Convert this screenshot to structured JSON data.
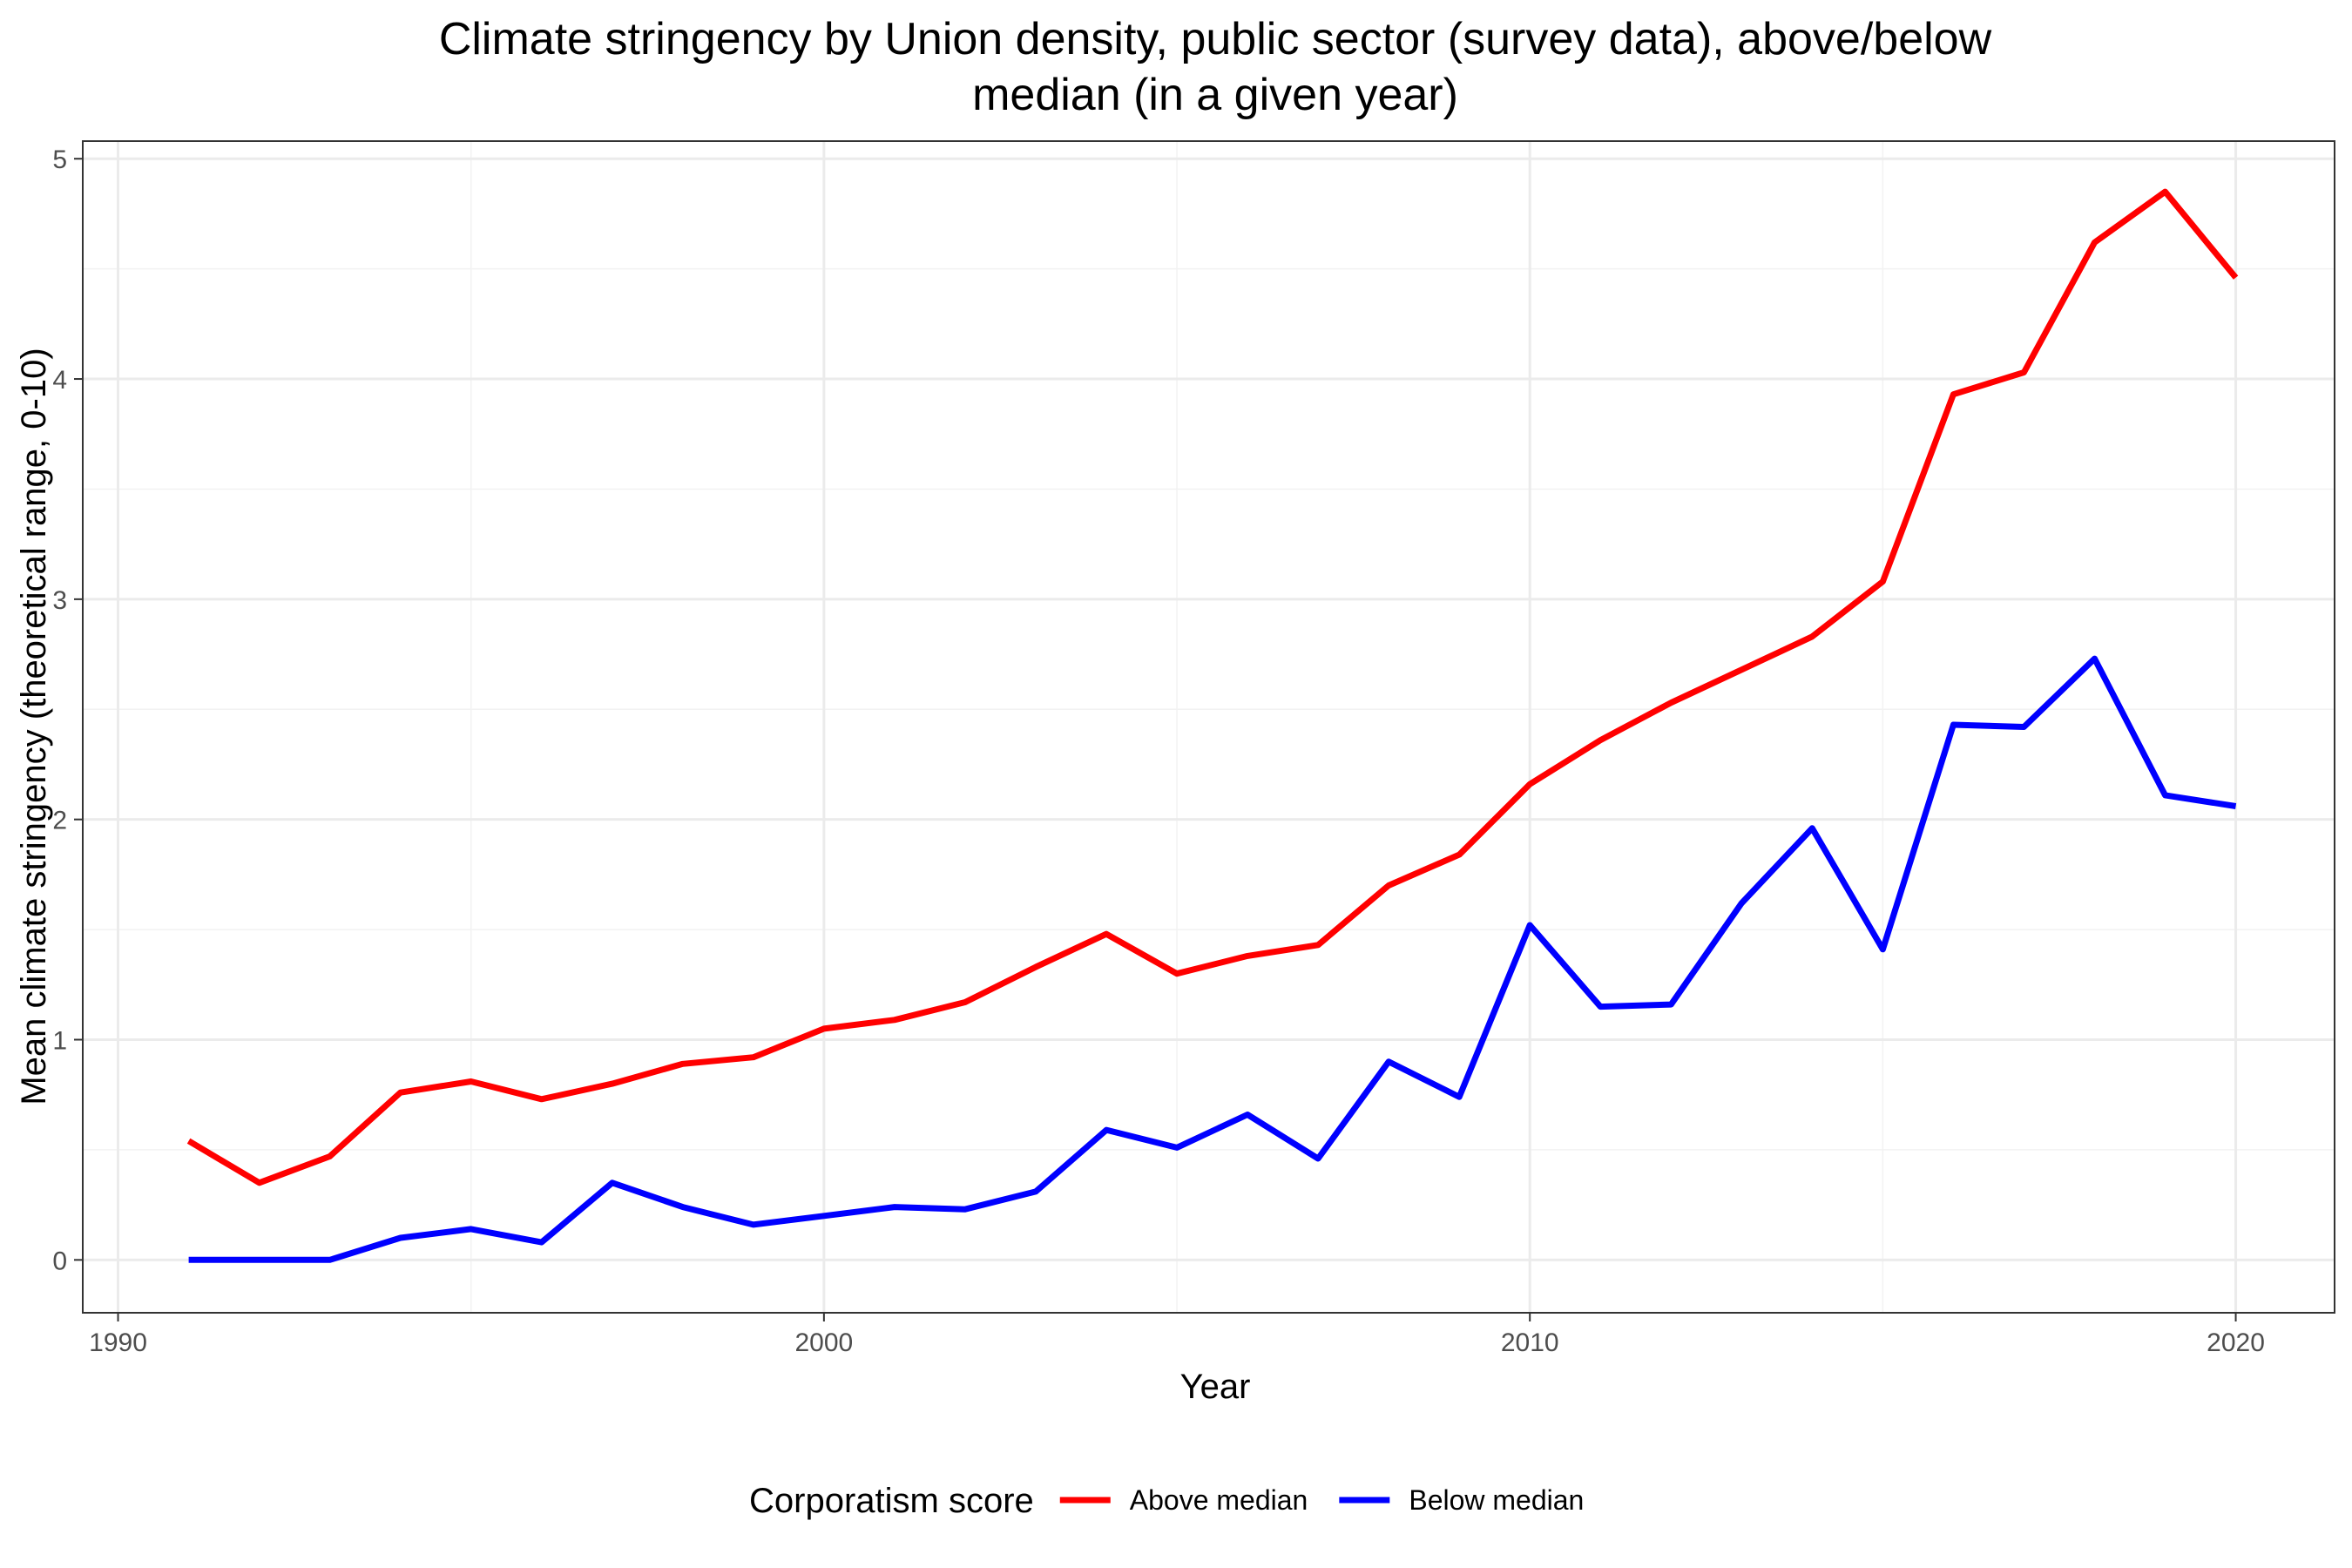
{
  "chart_data": {
    "type": "line",
    "title": [
      "Climate stringency by Union density, public sector (survey data), above/below",
      "median (in a given year)"
    ],
    "xlabel": "Year",
    "ylabel": "Mean climate stringency (theoretical range, 0-10)",
    "xlim": [
      1989.5,
      2021.4
    ],
    "ylim": [
      -0.24,
      5.08
    ],
    "x_ticks": [
      1990,
      2000,
      2010,
      2020
    ],
    "x_tick_labels": [
      "1990",
      "2000",
      "2010",
      "2020"
    ],
    "y_ticks": [
      0,
      1,
      2,
      3,
      4,
      5
    ],
    "y_tick_labels": [
      "0",
      "1",
      "2",
      "3",
      "4",
      "5"
    ],
    "grid": true,
    "legend": {
      "title": "Corporatism score",
      "position": "bottom"
    },
    "x": [
      1991,
      1992,
      1993,
      1994,
      1995,
      1996,
      1997,
      1998,
      1999,
      2000,
      2001,
      2002,
      2003,
      2004,
      2005,
      2006,
      2007,
      2008,
      2009,
      2010,
      2011,
      2012,
      2013,
      2014,
      2015,
      2016,
      2017,
      2018,
      2019,
      2020
    ],
    "series": [
      {
        "name": "Above median",
        "color": "#ff0000",
        "values": [
          0.54,
          0.35,
          0.47,
          0.76,
          0.81,
          0.73,
          0.8,
          0.89,
          0.92,
          1.05,
          1.09,
          1.17,
          1.33,
          1.48,
          1.3,
          1.38,
          1.43,
          1.7,
          1.84,
          2.16,
          2.36,
          2.53,
          2.68,
          2.83,
          3.08,
          3.93,
          4.03,
          4.62,
          4.85,
          4.46
        ]
      },
      {
        "name": "Below median",
        "color": "#0000ff",
        "values": [
          0.0,
          0.0,
          0.0,
          0.1,
          0.14,
          0.08,
          0.35,
          0.24,
          0.16,
          0.2,
          0.24,
          0.23,
          0.31,
          0.59,
          0.51,
          0.66,
          0.46,
          0.9,
          0.74,
          1.52,
          1.15,
          1.16,
          1.62,
          1.96,
          1.41,
          2.43,
          2.42,
          2.73,
          2.11,
          2.06
        ]
      }
    ]
  }
}
